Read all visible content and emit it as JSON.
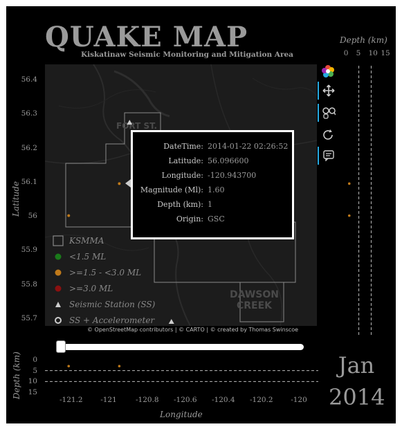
{
  "title": "QUAKE MAP",
  "subtitle": "Kiskatinaw Seismic Monitoring and Mitigation Area",
  "map": {
    "town_labels": [
      "FORT ST.",
      "DAWSON",
      "CREEK"
    ],
    "attribution": "© OpenStreetMap contributors | © CARTO | © created by Thomas Swinscoe"
  },
  "axes": {
    "latitude_label": "Latitude",
    "longitude_label": "Longitude",
    "latitude_ticks": [
      "56.4",
      "56.3",
      "56.2",
      "56.1",
      "56",
      "55.9",
      "55.8",
      "55.7"
    ],
    "longitude_ticks": [
      "-121.2",
      "-121",
      "-120.8",
      "-120.6",
      "-120.4",
      "-120.2",
      "-120"
    ],
    "depth_label": "Depth (km)",
    "depth_ticks_top": [
      "0",
      "5",
      "10",
      "15"
    ],
    "depth_ticks_side": [
      "0",
      "5",
      "10",
      "15"
    ]
  },
  "legend": {
    "items": [
      {
        "label": "KSMMA",
        "symbol": "square",
        "color": "#888888"
      },
      {
        "label": "<1.5 ML",
        "symbol": "dot",
        "color": "#1a7a1a"
      },
      {
        "label": ">=1.5 - <3.0 ML",
        "symbol": "dot",
        "color": "#c07a1a"
      },
      {
        "label": ">=3.0 ML",
        "symbol": "dot",
        "color": "#8b1010"
      },
      {
        "label": "Seismic Station (SS)",
        "symbol": "triangle",
        "color": "#cccccc"
      },
      {
        "label": "SS + Accelerometer",
        "symbol": "ring",
        "color": "#cccccc"
      }
    ]
  },
  "toolbar": {
    "buttons": [
      {
        "name": "logo-icon"
      },
      {
        "name": "pan-icon",
        "active": true
      },
      {
        "name": "wheel-zoom-icon",
        "active": true
      },
      {
        "name": "reset-icon",
        "active": false
      },
      {
        "name": "hover-tooltip-icon",
        "active": true
      }
    ],
    "accent": "#26aae1"
  },
  "tooltip": {
    "rows": [
      {
        "key": "DateTime:",
        "value": "2014-01-22 02:26:52"
      },
      {
        "key": "Latitude:",
        "value": "56.096600"
      },
      {
        "key": "Longitude:",
        "value": "-120.943700"
      },
      {
        "key": "Magnitude (Ml):",
        "value": "1.60"
      },
      {
        "key": "Depth (km):",
        "value": "1"
      },
      {
        "key": "Origin:",
        "value": "GSC"
      }
    ]
  },
  "time_slider": {
    "month": "Jan",
    "year": "2014",
    "position": 0.0
  },
  "events": [
    {
      "lon": -121.21,
      "lat": 56.003,
      "depth_km": 1,
      "color": "#c07a1a"
    },
    {
      "lon": -120.944,
      "lat": 56.097,
      "depth_km": 1,
      "color": "#c07a1a"
    }
  ],
  "stations": [
    {
      "lon": -120.89,
      "lat": 56.276,
      "type": "triangle"
    },
    {
      "lon": -120.67,
      "lat": 55.692,
      "type": "triangle"
    }
  ]
}
